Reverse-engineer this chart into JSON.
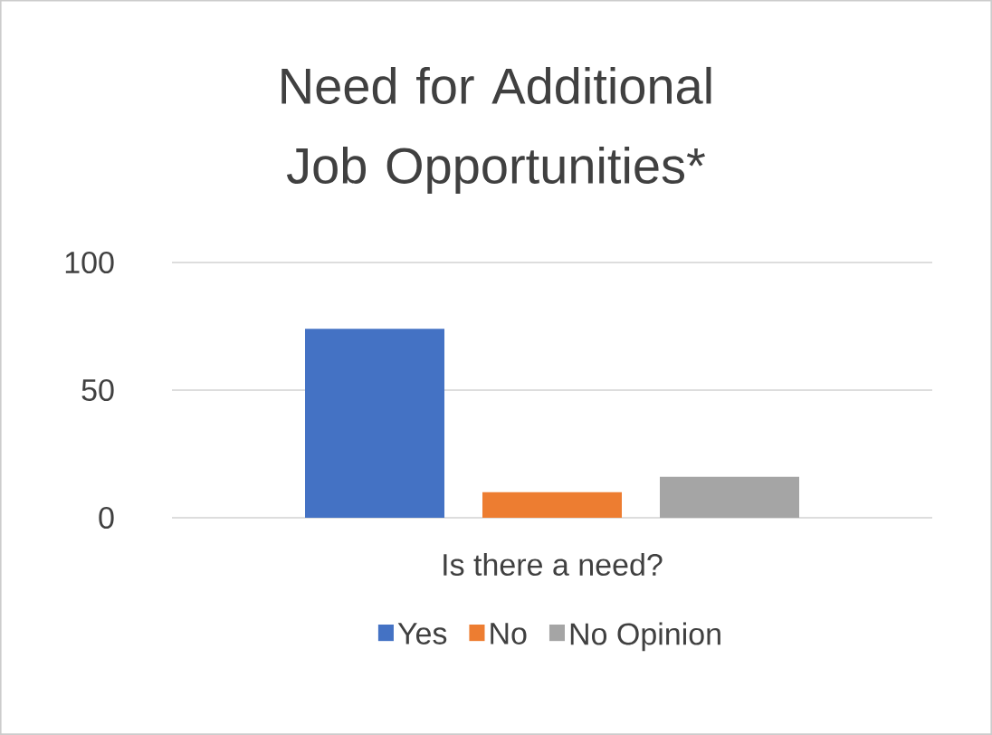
{
  "chart_data": {
    "type": "bar",
    "title": "Need for Additional Job Opportunities*",
    "categories": [
      "Is there a need?"
    ],
    "series": [
      {
        "name": "Yes",
        "color": "#4472c4",
        "values": [
          74
        ]
      },
      {
        "name": "No",
        "color": "#ed7d31",
        "values": [
          10
        ]
      },
      {
        "name": "No Opinion",
        "color": "#a5a5a5",
        "values": [
          16
        ]
      }
    ],
    "ylim": [
      0,
      100
    ],
    "yticks": [
      0,
      50,
      100
    ],
    "grid": "y",
    "legend": "bottom"
  }
}
